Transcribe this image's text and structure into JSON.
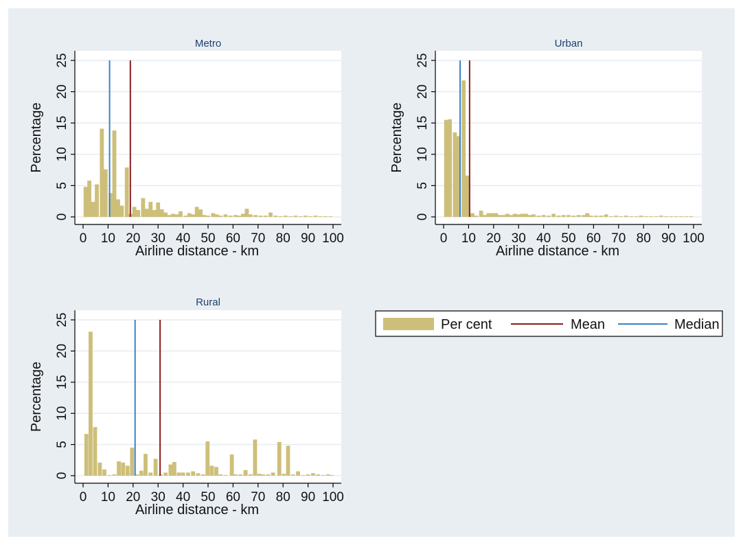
{
  "chart_data": [
    {
      "type": "bar",
      "title": "Metro",
      "xlabel": "Airline distance - km",
      "ylabel": "Percentage",
      "xlim": [
        0,
        100
      ],
      "ylim": [
        0,
        25
      ],
      "xticks": [
        "0",
        "10",
        "20",
        "30",
        "40",
        "50",
        "60",
        "70",
        "80",
        "90",
        "100"
      ],
      "yticks": [
        "0",
        "5",
        "10",
        "15",
        "20",
        "25"
      ],
      "grid": true,
      "bin_width": 1.6,
      "bins": [
        [
          1,
          4.8
        ],
        [
          2.5,
          5.8
        ],
        [
          4,
          2.4
        ],
        [
          5.5,
          5.2
        ],
        [
          7.5,
          14.1
        ],
        [
          9,
          7.6
        ],
        [
          11,
          3.8
        ],
        [
          12.5,
          13.8
        ],
        [
          14,
          2.8
        ],
        [
          15.5,
          1.8
        ],
        [
          17.5,
          7.9
        ],
        [
          19,
          0.5
        ],
        [
          20.5,
          1.6
        ],
        [
          22,
          1.1
        ],
        [
          24,
          3.0
        ],
        [
          25.5,
          1.3
        ],
        [
          27,
          2.4
        ],
        [
          28.5,
          1.1
        ],
        [
          30,
          2.3
        ],
        [
          31.5,
          1.2
        ],
        [
          33,
          0.7
        ],
        [
          34.5,
          0.3
        ],
        [
          36,
          0.5
        ],
        [
          37.5,
          0.4
        ],
        [
          39,
          0.9
        ],
        [
          41,
          0.2
        ],
        [
          42.5,
          0.6
        ],
        [
          44,
          0.4
        ],
        [
          45.5,
          1.6
        ],
        [
          47,
          1.2
        ],
        [
          48.5,
          0.3
        ],
        [
          50,
          0.2
        ],
        [
          52,
          0.6
        ],
        [
          53.5,
          0.4
        ],
        [
          55,
          0.2
        ],
        [
          57,
          0.4
        ],
        [
          59,
          0.2
        ],
        [
          61,
          0.3
        ],
        [
          62.5,
          0.2
        ],
        [
          64,
          0.5
        ],
        [
          65.5,
          1.3
        ],
        [
          67,
          0.4
        ],
        [
          69,
          0.3
        ],
        [
          71,
          0.2
        ],
        [
          73,
          0.2
        ],
        [
          75,
          0.7
        ],
        [
          77,
          0.2
        ],
        [
          79,
          0.1
        ],
        [
          81,
          0.2
        ],
        [
          83,
          0.1
        ],
        [
          85,
          0.2
        ],
        [
          87,
          0.1
        ],
        [
          89,
          0.2
        ],
        [
          91,
          0.1
        ],
        [
          93,
          0.2
        ],
        [
          95,
          0.1
        ],
        [
          97,
          0.1
        ],
        [
          99,
          0.1
        ]
      ],
      "mean": 18.9,
      "median": 10.6
    },
    {
      "type": "bar",
      "title": "Urban",
      "xlabel": "Airline distance - km",
      "ylabel": "Percentage",
      "xlim": [
        0,
        100
      ],
      "ylim": [
        0,
        25
      ],
      "xticks": [
        "0",
        "10",
        "20",
        "30",
        "40",
        "50",
        "60",
        "70",
        "80",
        "90",
        "100"
      ],
      "yticks": [
        "0",
        "5",
        "10",
        "15",
        "20",
        "25"
      ],
      "grid": true,
      "bin_width": 1.6,
      "bins": [
        [
          1,
          15.5
        ],
        [
          2.5,
          15.6
        ],
        [
          4.5,
          13.5
        ],
        [
          6,
          12.9
        ],
        [
          8,
          21.8
        ],
        [
          9.5,
          6.6
        ],
        [
          11.5,
          0.6
        ],
        [
          13,
          0.2
        ],
        [
          15,
          1.0
        ],
        [
          16.5,
          0.3
        ],
        [
          18,
          0.6
        ],
        [
          19.5,
          0.6
        ],
        [
          21,
          0.6
        ],
        [
          22.5,
          0.3
        ],
        [
          24,
          0.3
        ],
        [
          25.5,
          0.5
        ],
        [
          27,
          0.3
        ],
        [
          28.5,
          0.5
        ],
        [
          30,
          0.4
        ],
        [
          31.5,
          0.5
        ],
        [
          33,
          0.5
        ],
        [
          34.5,
          0.3
        ],
        [
          36,
          0.4
        ],
        [
          38,
          0.2
        ],
        [
          40,
          0.3
        ],
        [
          42,
          0.2
        ],
        [
          44,
          0.5
        ],
        [
          46,
          0.2
        ],
        [
          48,
          0.3
        ],
        [
          50,
          0.3
        ],
        [
          52,
          0.2
        ],
        [
          54,
          0.3
        ],
        [
          56,
          0.3
        ],
        [
          57.5,
          0.6
        ],
        [
          59,
          0.2
        ],
        [
          61,
          0.2
        ],
        [
          63,
          0.2
        ],
        [
          65,
          0.4
        ],
        [
          67,
          0.1
        ],
        [
          69,
          0.2
        ],
        [
          71,
          0.1
        ],
        [
          73,
          0.2
        ],
        [
          75,
          0.1
        ],
        [
          77,
          0.1
        ],
        [
          79,
          0.2
        ],
        [
          81,
          0.1
        ],
        [
          83,
          0.1
        ],
        [
          85,
          0.1
        ],
        [
          87,
          0.2
        ],
        [
          89,
          0.1
        ],
        [
          91,
          0.1
        ],
        [
          93,
          0.1
        ],
        [
          95,
          0.1
        ],
        [
          97,
          0.1
        ],
        [
          99,
          0.1
        ]
      ],
      "mean": 10.4,
      "median": 6.6
    },
    {
      "type": "bar",
      "title": "Rural",
      "xlabel": "Airline distance - km",
      "ylabel": "Percentage",
      "xlim": [
        0,
        100
      ],
      "ylim": [
        0,
        25
      ],
      "xticks": [
        "0",
        "10",
        "20",
        "30",
        "40",
        "50",
        "60",
        "70",
        "80",
        "90",
        "100"
      ],
      "yticks": [
        "0",
        "5",
        "10",
        "15",
        "20",
        "25"
      ],
      "grid": true,
      "bin_width": 1.6,
      "bins": [
        [
          1.3,
          6.7
        ],
        [
          3,
          23.1
        ],
        [
          4.8,
          7.8
        ],
        [
          6.7,
          2.1
        ],
        [
          8.5,
          1.0
        ],
        [
          10.5,
          0.1
        ],
        [
          12.5,
          0.2
        ],
        [
          14.3,
          2.3
        ],
        [
          16,
          2.1
        ],
        [
          17.8,
          1.6
        ],
        [
          19.6,
          4.5
        ],
        [
          21.5,
          0.2
        ],
        [
          23.3,
          0.8
        ],
        [
          25,
          3.5
        ],
        [
          27,
          0.5
        ],
        [
          29,
          2.7
        ],
        [
          31,
          0.2
        ],
        [
          33,
          0.5
        ],
        [
          35,
          1.8
        ],
        [
          36.5,
          2.2
        ],
        [
          38.3,
          0.5
        ],
        [
          40,
          0.5
        ],
        [
          42,
          0.5
        ],
        [
          44,
          0.7
        ],
        [
          46,
          0.4
        ],
        [
          48,
          0.2
        ],
        [
          49.8,
          5.5
        ],
        [
          51.5,
          1.6
        ],
        [
          53.3,
          1.4
        ],
        [
          55,
          0.2
        ],
        [
          57,
          0.1
        ],
        [
          59.5,
          3.4
        ],
        [
          61,
          0.2
        ],
        [
          63,
          0.2
        ],
        [
          65,
          0.9
        ],
        [
          67,
          0.2
        ],
        [
          68.8,
          5.8
        ],
        [
          70.5,
          0.3
        ],
        [
          72,
          0.2
        ],
        [
          74,
          0.2
        ],
        [
          76,
          0.5
        ],
        [
          78.5,
          5.4
        ],
        [
          80.3,
          0.3
        ],
        [
          82,
          4.8
        ],
        [
          84,
          0.2
        ],
        [
          86,
          0.7
        ],
        [
          88,
          0.1
        ],
        [
          90,
          0.2
        ],
        [
          92,
          0.4
        ],
        [
          94,
          0.2
        ],
        [
          96,
          0.1
        ],
        [
          98,
          0.2
        ],
        [
          99.5,
          0.1
        ]
      ],
      "mean": 30.8,
      "median": 20.8
    }
  ],
  "legend": {
    "items": [
      {
        "label": "Per cent",
        "kind": "bar",
        "color": "#cdbf7a"
      },
      {
        "label": "Mean",
        "kind": "line",
        "color": "#8b1a1a"
      },
      {
        "label": "Median",
        "kind": "line",
        "color": "#3a82c4"
      }
    ]
  },
  "colors": {
    "bar_fill": "#cdbf7a",
    "mean_line": "#8b1a1a",
    "median_line": "#3a82c4",
    "plot_bg": "#ffffff",
    "figure_bg": "#e9eef3",
    "grid": "#e7ebf0",
    "title": "#1f3f6e"
  }
}
